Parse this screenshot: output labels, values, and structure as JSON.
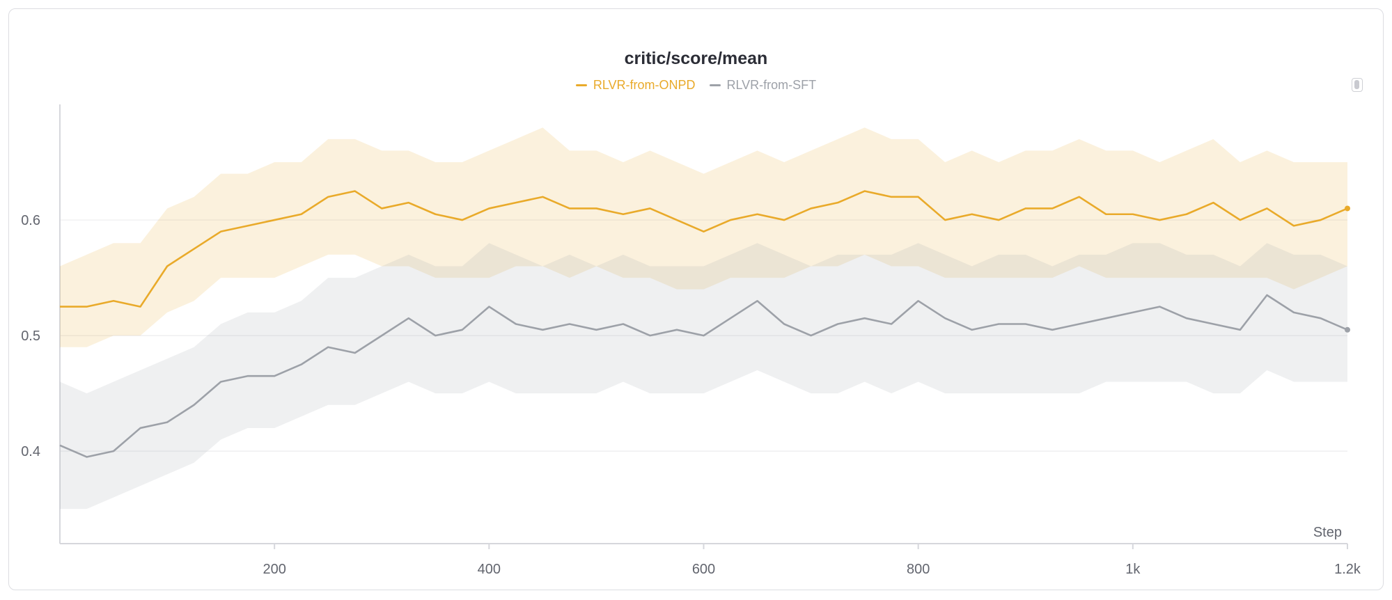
{
  "colors": {
    "series_onpd": "#e9aa2a",
    "series_sft": "#9da1a8",
    "grid": "#ececee",
    "axis": "#d6d7dc",
    "text": "#62656e"
  },
  "ui": {
    "scroll_handle_icon": "scroll-handle-icon"
  },
  "chart_data": {
    "type": "line",
    "title": "critic/score/mean",
    "xlabel": "Step",
    "ylabel": "",
    "xlim": [
      0,
      1200
    ],
    "ylim": [
      0.32,
      0.7
    ],
    "x_ticks": [
      200,
      400,
      600,
      800,
      1000,
      1200
    ],
    "x_tick_labels": [
      "200",
      "400",
      "600",
      "800",
      "1k",
      "1.2k"
    ],
    "y_ticks": [
      0.4,
      0.5,
      0.6
    ],
    "y_tick_labels": [
      "0.4",
      "0.5",
      "0.6"
    ],
    "grid": true,
    "legend_position": "top-center",
    "smoothing_note": "",
    "series": [
      {
        "name": "RLVR-from-ONPD",
        "x": [
          0,
          25,
          50,
          75,
          100,
          125,
          150,
          175,
          200,
          225,
          250,
          275,
          300,
          325,
          350,
          375,
          400,
          425,
          450,
          475,
          500,
          525,
          550,
          575,
          600,
          625,
          650,
          675,
          700,
          725,
          750,
          775,
          800,
          825,
          850,
          875,
          900,
          925,
          950,
          975,
          1000,
          1025,
          1050,
          1075,
          1100,
          1125,
          1150,
          1175,
          1200
        ],
        "smoothed": [
          0.525,
          0.525,
          0.53,
          0.525,
          0.56,
          0.575,
          0.59,
          0.595,
          0.6,
          0.605,
          0.62,
          0.625,
          0.61,
          0.615,
          0.605,
          0.6,
          0.61,
          0.615,
          0.62,
          0.61,
          0.61,
          0.605,
          0.61,
          0.6,
          0.59,
          0.6,
          0.605,
          0.6,
          0.61,
          0.615,
          0.625,
          0.62,
          0.62,
          0.6,
          0.605,
          0.6,
          0.61,
          0.61,
          0.62,
          0.605,
          0.605,
          0.6,
          0.605,
          0.615,
          0.6,
          0.61,
          0.595,
          0.6,
          0.61
        ],
        "raw_band_low": [
          0.49,
          0.49,
          0.5,
          0.5,
          0.52,
          0.53,
          0.55,
          0.55,
          0.55,
          0.56,
          0.57,
          0.57,
          0.56,
          0.56,
          0.55,
          0.55,
          0.55,
          0.56,
          0.56,
          0.55,
          0.56,
          0.55,
          0.55,
          0.54,
          0.54,
          0.55,
          0.55,
          0.55,
          0.56,
          0.56,
          0.57,
          0.56,
          0.56,
          0.55,
          0.55,
          0.55,
          0.55,
          0.55,
          0.56,
          0.55,
          0.55,
          0.55,
          0.55,
          0.55,
          0.55,
          0.55,
          0.54,
          0.55,
          0.56
        ],
        "raw_band_high": [
          0.56,
          0.57,
          0.58,
          0.58,
          0.61,
          0.62,
          0.64,
          0.64,
          0.65,
          0.65,
          0.67,
          0.67,
          0.66,
          0.66,
          0.65,
          0.65,
          0.66,
          0.67,
          0.68,
          0.66,
          0.66,
          0.65,
          0.66,
          0.65,
          0.64,
          0.65,
          0.66,
          0.65,
          0.66,
          0.67,
          0.68,
          0.67,
          0.67,
          0.65,
          0.66,
          0.65,
          0.66,
          0.66,
          0.67,
          0.66,
          0.66,
          0.65,
          0.66,
          0.67,
          0.65,
          0.66,
          0.65,
          0.65,
          0.65
        ]
      },
      {
        "name": "RLVR-from-SFT",
        "x": [
          0,
          25,
          50,
          75,
          100,
          125,
          150,
          175,
          200,
          225,
          250,
          275,
          300,
          325,
          350,
          375,
          400,
          425,
          450,
          475,
          500,
          525,
          550,
          575,
          600,
          625,
          650,
          675,
          700,
          725,
          750,
          775,
          800,
          825,
          850,
          875,
          900,
          925,
          950,
          975,
          1000,
          1025,
          1050,
          1075,
          1100,
          1125,
          1150,
          1175,
          1200
        ],
        "smoothed": [
          0.405,
          0.395,
          0.4,
          0.42,
          0.425,
          0.44,
          0.46,
          0.465,
          0.465,
          0.475,
          0.49,
          0.485,
          0.5,
          0.515,
          0.5,
          0.505,
          0.525,
          0.51,
          0.505,
          0.51,
          0.505,
          0.51,
          0.5,
          0.505,
          0.5,
          0.515,
          0.53,
          0.51,
          0.5,
          0.51,
          0.515,
          0.51,
          0.53,
          0.515,
          0.505,
          0.51,
          0.51,
          0.505,
          0.51,
          0.515,
          0.52,
          0.525,
          0.515,
          0.51,
          0.505,
          0.535,
          0.52,
          0.515,
          0.505
        ],
        "raw_band_low": [
          0.35,
          0.35,
          0.36,
          0.37,
          0.38,
          0.39,
          0.41,
          0.42,
          0.42,
          0.43,
          0.44,
          0.44,
          0.45,
          0.46,
          0.45,
          0.45,
          0.46,
          0.45,
          0.45,
          0.45,
          0.45,
          0.46,
          0.45,
          0.45,
          0.45,
          0.46,
          0.47,
          0.46,
          0.45,
          0.45,
          0.46,
          0.45,
          0.46,
          0.45,
          0.45,
          0.45,
          0.45,
          0.45,
          0.45,
          0.46,
          0.46,
          0.46,
          0.46,
          0.45,
          0.45,
          0.47,
          0.46,
          0.46,
          0.46
        ],
        "raw_band_high": [
          0.46,
          0.45,
          0.46,
          0.47,
          0.48,
          0.49,
          0.51,
          0.52,
          0.52,
          0.53,
          0.55,
          0.55,
          0.56,
          0.57,
          0.56,
          0.56,
          0.58,
          0.57,
          0.56,
          0.57,
          0.56,
          0.57,
          0.56,
          0.56,
          0.56,
          0.57,
          0.58,
          0.57,
          0.56,
          0.57,
          0.57,
          0.57,
          0.58,
          0.57,
          0.56,
          0.57,
          0.57,
          0.56,
          0.57,
          0.57,
          0.58,
          0.58,
          0.57,
          0.57,
          0.56,
          0.58,
          0.57,
          0.57,
          0.56
        ]
      }
    ]
  }
}
